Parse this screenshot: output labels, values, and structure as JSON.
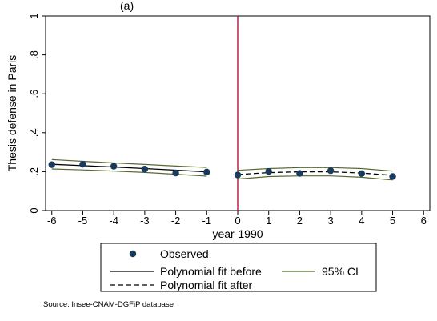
{
  "chart_data": {
    "type": "scatter",
    "title_fragment": "(a)",
    "xlabel": "year-1990",
    "ylabel": "Thesis defense in Paris",
    "xlim": [
      -6.2,
      6.2
    ],
    "ylim": [
      0,
      1
    ],
    "x_ticks": [
      -6,
      -5,
      -4,
      -3,
      -2,
      -1,
      0,
      1,
      2,
      3,
      4,
      5,
      6
    ],
    "x_tick_labels": [
      "-6",
      "-5",
      "-4",
      "-3",
      "-2",
      "-1",
      "0",
      "1",
      "2",
      "3",
      "4",
      "5",
      "6"
    ],
    "y_ticks": [
      0,
      0.2,
      0.4,
      0.6,
      0.8,
      1
    ],
    "y_tick_labels": [
      "0",
      ".2",
      ".4",
      ".6",
      ".8",
      "1"
    ],
    "cutoff_x": 0,
    "series": [
      {
        "name": "Observed",
        "kind": "points",
        "x": [
          -6,
          -5,
          -4,
          -3,
          -2,
          -1,
          0,
          1,
          2,
          3,
          4,
          5
        ],
        "y": [
          0.236,
          0.238,
          0.228,
          0.213,
          0.193,
          0.198,
          0.183,
          0.201,
          0.191,
          0.205,
          0.19,
          0.175
        ]
      },
      {
        "name": "Polynomial fit before",
        "kind": "solid-line",
        "x": [
          -6,
          -5,
          -4,
          -3,
          -2,
          -1
        ],
        "y": [
          0.238,
          0.231,
          0.224,
          0.216,
          0.208,
          0.199
        ]
      },
      {
        "name": "Polynomial fit after",
        "kind": "dashed-line",
        "x": [
          0,
          1,
          2,
          3,
          4,
          5
        ],
        "y": [
          0.185,
          0.195,
          0.199,
          0.199,
          0.193,
          0.181
        ]
      },
      {
        "name": "95% CI",
        "kind": "ci",
        "before_upper": {
          "x": [
            -6,
            -5,
            -4,
            -3,
            -2,
            -1
          ],
          "y": [
            0.262,
            0.253,
            0.245,
            0.237,
            0.229,
            0.222
          ]
        },
        "before_lower": {
          "x": [
            -6,
            -5,
            -4,
            -3,
            -2,
            -1
          ],
          "y": [
            0.214,
            0.209,
            0.203,
            0.196,
            0.187,
            0.177
          ]
        },
        "after_upper": {
          "x": [
            0,
            1,
            2,
            3,
            4,
            5
          ],
          "y": [
            0.207,
            0.216,
            0.221,
            0.221,
            0.216,
            0.203
          ]
        },
        "after_lower": {
          "x": [
            0,
            1,
            2,
            3,
            4,
            5
          ],
          "y": [
            0.162,
            0.175,
            0.178,
            0.178,
            0.171,
            0.157
          ]
        }
      }
    ],
    "legend": {
      "observed": "Observed",
      "fit_before": "Polynomial fit before",
      "fit_after": "Polynomial fit after",
      "ci": "95% CI"
    },
    "colors": {
      "points": "#1a3a5c",
      "fit": "#000000",
      "ci": "#556b2f",
      "cutoff": "#b5123a"
    }
  },
  "note": "Source: Insee-CNAM-DGFiP database"
}
